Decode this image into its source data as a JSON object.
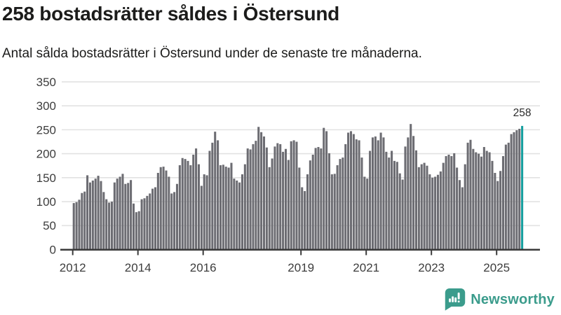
{
  "header": {
    "title": "258 bostadsrätter såldes i Östersund",
    "subtitle": "Antal sålda bostadsrätter i Östersund under de senaste tre månaderna."
  },
  "footer": {
    "brand": "Newsworthy"
  },
  "colors": {
    "bar": "#6C6C72",
    "highlight": "#169F9F",
    "grid": "#E2E2E2",
    "axis": "#3A3A3A",
    "tick_label": "#3D3D3D",
    "annotation": "#2B2B2B",
    "title_text": "#1C1C1B",
    "brand": "#3B9C8C"
  },
  "chart_data": {
    "type": "bar",
    "title": "258 bostadsrätter såldes i Östersund",
    "subtitle": "Antal sålda bostadsrätter i Östersund under de senaste tre månaderna.",
    "start_year": 2012,
    "x_tick_labels": [
      "2012",
      "2014",
      "2016",
      "2019",
      "2021",
      "2023",
      "2025"
    ],
    "y_ticks": [
      0,
      50,
      100,
      150,
      200,
      250,
      300,
      350
    ],
    "ylim": [
      0,
      350
    ],
    "grid": true,
    "legend": false,
    "highlight": {
      "index": 165,
      "label": "258",
      "value": 258
    },
    "values": [
      97,
      99,
      104,
      118,
      121,
      155,
      140,
      144,
      148,
      154,
      143,
      120,
      105,
      98,
      100,
      140,
      148,
      152,
      158,
      137,
      139,
      145,
      96,
      78,
      80,
      105,
      107,
      112,
      117,
      127,
      130,
      160,
      172,
      173,
      165,
      152,
      117,
      120,
      137,
      176,
      191,
      189,
      185,
      176,
      198,
      211,
      178,
      133,
      157,
      155,
      206,
      223,
      246,
      228,
      176,
      177,
      173,
      171,
      181,
      148,
      144,
      140,
      157,
      178,
      211,
      209,
      220,
      227,
      256,
      245,
      236,
      213,
      172,
      190,
      215,
      222,
      220,
      204,
      210,
      187,
      226,
      228,
      225,
      171,
      130,
      122,
      157,
      186,
      198,
      212,
      214,
      211,
      254,
      247,
      201,
      157,
      158,
      176,
      189,
      192,
      220,
      244,
      247,
      241,
      230,
      228,
      192,
      152,
      148,
      206,
      234,
      236,
      228,
      244,
      234,
      204,
      192,
      206,
      185,
      183,
      159,
      146,
      215,
      234,
      262,
      237,
      207,
      172,
      178,
      181,
      175,
      157,
      150,
      152,
      156,
      163,
      181,
      195,
      198,
      195,
      201,
      171,
      145,
      130,
      178,
      223,
      229,
      210,
      203,
      200,
      194,
      214,
      206,
      203,
      185,
      160,
      143,
      164,
      195,
      219,
      223,
      241,
      245,
      249,
      252,
      258
    ]
  }
}
